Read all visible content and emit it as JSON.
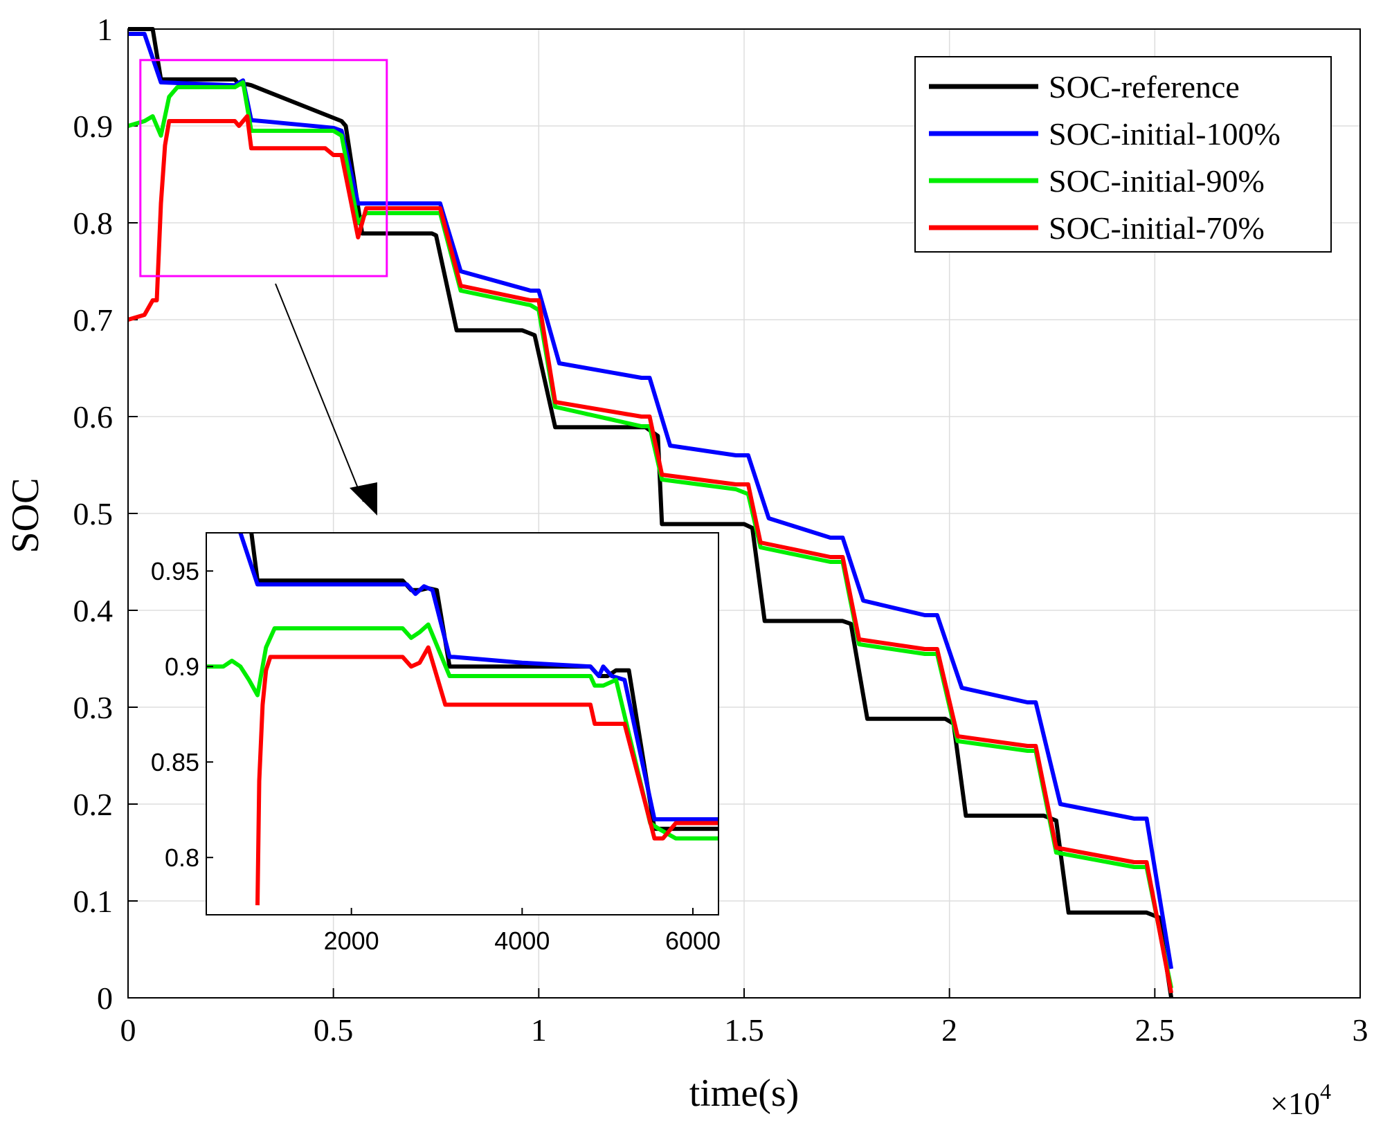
{
  "chart_data": {
    "type": "line",
    "title": "",
    "xlabel": "time(s)",
    "ylabel": "SOC",
    "x_multiplier_label": "×10",
    "x_multiplier_exp": "4",
    "xlim": [
      0,
      3
    ],
    "ylim": [
      0,
      1
    ],
    "grid": true,
    "legend_position": "top-right",
    "x_ticks": [
      0,
      0.5,
      1,
      1.5,
      2,
      2.5,
      3
    ],
    "x_tick_labels": [
      "0",
      "0.5",
      "1",
      "1.5",
      "2",
      "2.5",
      "3"
    ],
    "y_ticks": [
      0,
      0.1,
      0.2,
      0.3,
      0.4,
      0.5,
      0.6,
      0.7,
      0.8,
      0.9,
      1
    ],
    "y_tick_labels": [
      "0",
      "0.1",
      "0.2",
      "0.3",
      "0.4",
      "0.5",
      "0.6",
      "0.7",
      "0.8",
      "0.9",
      "1"
    ],
    "series": [
      {
        "name": "SOC-reference",
        "color": "#000000",
        "x": [
          0,
          0.06,
          0.08,
          0.26,
          0.27,
          0.29,
          0.3,
          0.52,
          0.53,
          0.57,
          0.74,
          0.75,
          0.8,
          0.96,
          0.99,
          1.04,
          1.26,
          1.29,
          1.3,
          1.5,
          1.52,
          1.55,
          1.74,
          1.76,
          1.8,
          1.99,
          2.01,
          2.04,
          2.23,
          2.26,
          2.29,
          2.48,
          2.51,
          2.54
        ],
        "values": [
          1.0,
          1.0,
          0.948,
          0.948,
          0.943,
          0.943,
          0.942,
          0.905,
          0.9,
          0.789,
          0.789,
          0.787,
          0.689,
          0.689,
          0.684,
          0.589,
          0.589,
          0.58,
          0.489,
          0.489,
          0.485,
          0.389,
          0.389,
          0.386,
          0.288,
          0.288,
          0.283,
          0.188,
          0.188,
          0.183,
          0.088,
          0.088,
          0.083,
          0.0
        ]
      },
      {
        "name": "SOC-initial-100%",
        "color": "#0000ff",
        "x": [
          0,
          0.04,
          0.06,
          0.08,
          0.26,
          0.28,
          0.3,
          0.5,
          0.52,
          0.56,
          0.75,
          0.76,
          0.81,
          0.98,
          1.0,
          1.05,
          1.25,
          1.27,
          1.32,
          1.48,
          1.51,
          1.56,
          1.71,
          1.74,
          1.79,
          1.94,
          1.97,
          2.03,
          2.19,
          2.21,
          2.27,
          2.45,
          2.48,
          2.54
        ],
        "values": [
          0.995,
          0.995,
          0.97,
          0.945,
          0.942,
          0.947,
          0.906,
          0.898,
          0.895,
          0.82,
          0.82,
          0.82,
          0.75,
          0.73,
          0.73,
          0.655,
          0.64,
          0.64,
          0.57,
          0.56,
          0.56,
          0.495,
          0.475,
          0.475,
          0.41,
          0.395,
          0.395,
          0.32,
          0.305,
          0.305,
          0.2,
          0.185,
          0.185,
          0.03
        ]
      },
      {
        "name": "SOC-initial-90%",
        "color": "#00ee00",
        "x": [
          0,
          0.04,
          0.06,
          0.08,
          0.1,
          0.12,
          0.26,
          0.28,
          0.3,
          0.5,
          0.52,
          0.56,
          0.58,
          0.75,
          0.76,
          0.81,
          0.98,
          1.0,
          1.04,
          1.25,
          1.27,
          1.3,
          1.48,
          1.51,
          1.54,
          1.71,
          1.74,
          1.78,
          1.94,
          1.97,
          2.02,
          2.19,
          2.21,
          2.26,
          2.45,
          2.48,
          2.54
        ],
        "values": [
          0.9,
          0.905,
          0.91,
          0.89,
          0.93,
          0.94,
          0.94,
          0.945,
          0.895,
          0.895,
          0.89,
          0.8,
          0.81,
          0.81,
          0.81,
          0.73,
          0.715,
          0.71,
          0.61,
          0.59,
          0.59,
          0.535,
          0.525,
          0.52,
          0.465,
          0.45,
          0.45,
          0.365,
          0.355,
          0.355,
          0.265,
          0.255,
          0.255,
          0.15,
          0.135,
          0.135,
          0.01
        ]
      },
      {
        "name": "SOC-initial-70%",
        "color": "#ff0000",
        "x": [
          0,
          0.04,
          0.06,
          0.07,
          0.08,
          0.09,
          0.1,
          0.26,
          0.27,
          0.29,
          0.3,
          0.48,
          0.5,
          0.52,
          0.56,
          0.58,
          0.75,
          0.76,
          0.81,
          0.98,
          1.0,
          1.04,
          1.25,
          1.27,
          1.3,
          1.48,
          1.51,
          1.54,
          1.71,
          1.74,
          1.78,
          1.94,
          1.97,
          2.02,
          2.19,
          2.21,
          2.26,
          2.45,
          2.48,
          2.54
        ],
        "values": [
          0.7,
          0.705,
          0.72,
          0.72,
          0.82,
          0.88,
          0.905,
          0.905,
          0.9,
          0.91,
          0.877,
          0.877,
          0.87,
          0.87,
          0.785,
          0.815,
          0.815,
          0.815,
          0.735,
          0.72,
          0.72,
          0.615,
          0.6,
          0.6,
          0.54,
          0.53,
          0.53,
          0.47,
          0.455,
          0.455,
          0.37,
          0.36,
          0.36,
          0.27,
          0.26,
          0.26,
          0.155,
          0.14,
          0.14,
          0.005
        ]
      }
    ],
    "inset": {
      "xlim": [
        300,
        6300
      ],
      "ylim": [
        0.77,
        0.97
      ],
      "x_ticks": [
        2000,
        4000,
        6000
      ],
      "x_tick_labels": [
        "2000",
        "4000",
        "6000"
      ],
      "y_ticks": [
        0.8,
        0.85,
        0.9,
        0.95
      ],
      "y_tick_labels": [
        "0.8",
        "0.85",
        "0.9",
        "0.95"
      ],
      "zoom_region": {
        "x": [
          300,
          6300
        ],
        "y": [
          0.745,
          0.968
        ]
      },
      "series": [
        {
          "name": "SOC-reference",
          "color": "#000000",
          "x": [
            800,
            900,
            2600,
            2700,
            2800,
            2900,
            3000,
            3150,
            4800,
            4900,
            5000,
            5100,
            5250,
            5550,
            5700,
            6300
          ],
          "values": [
            0.98,
            0.945,
            0.945,
            0.94,
            0.94,
            0.941,
            0.94,
            0.9,
            0.9,
            0.895,
            0.895,
            0.898,
            0.898,
            0.815,
            0.815,
            0.815
          ]
        },
        {
          "name": "SOC-initial-100%",
          "color": "#0000ff",
          "x": [
            700,
            900,
            2650,
            2750,
            2850,
            2950,
            3150,
            3200,
            4000,
            4800,
            4900,
            4950,
            5050,
            5200,
            5550,
            6300
          ],
          "values": [
            0.97,
            0.943,
            0.943,
            0.938,
            0.942,
            0.94,
            0.905,
            0.905,
            0.902,
            0.9,
            0.895,
            0.9,
            0.895,
            0.893,
            0.82,
            0.82
          ]
        },
        {
          "name": "SOC-initial-90%",
          "color": "#00ee00",
          "x": [
            300,
            500,
            600,
            700,
            800,
            900,
            1000,
            1100,
            2600,
            2700,
            2800,
            2900,
            3150,
            4800,
            4850,
            4950,
            5100,
            5500,
            5600,
            5800,
            6300
          ],
          "values": [
            0.9,
            0.9,
            0.903,
            0.9,
            0.893,
            0.885,
            0.91,
            0.92,
            0.92,
            0.915,
            0.918,
            0.922,
            0.895,
            0.895,
            0.89,
            0.89,
            0.893,
            0.818,
            0.815,
            0.81,
            0.81
          ]
        },
        {
          "name": "SOC-initial-70%",
          "color": "#ff0000",
          "x": [
            900,
            920,
            960,
            1000,
            1050,
            1100,
            2600,
            2700,
            2800,
            2900,
            3100,
            4800,
            4850,
            5200,
            5550,
            5650,
            5800,
            6300
          ],
          "values": [
            0.775,
            0.84,
            0.88,
            0.898,
            0.905,
            0.905,
            0.905,
            0.9,
            0.902,
            0.91,
            0.88,
            0.88,
            0.87,
            0.87,
            0.81,
            0.81,
            0.818,
            0.818
          ]
        }
      ]
    }
  }
}
